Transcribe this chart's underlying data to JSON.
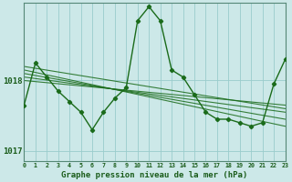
{
  "title": "Graphe pression niveau de la mer (hPa)",
  "bg_color": "#cce8e8",
  "plot_bg_color": "#cce8e8",
  "line_color": "#1a6b1a",
  "grid_color": "#99cccc",
  "text_color": "#1a5c1a",
  "xlim": [
    0,
    23
  ],
  "ylim": [
    1016.85,
    1019.1
  ],
  "yticks": [
    1017,
    1018
  ],
  "ytick_labels": [
    "1017",
    "1018"
  ],
  "xticks": [
    0,
    1,
    2,
    3,
    4,
    5,
    6,
    7,
    8,
    9,
    10,
    11,
    12,
    13,
    14,
    15,
    16,
    17,
    18,
    19,
    20,
    21,
    22,
    23
  ],
  "main_series_x": [
    0,
    1,
    2,
    3,
    4,
    5,
    6,
    7,
    8,
    9,
    10,
    11,
    12,
    13,
    14,
    15,
    16,
    17,
    18,
    19,
    20,
    21,
    22,
    23
  ],
  "main_series_y": [
    1017.65,
    1018.25,
    1018.05,
    1017.85,
    1017.7,
    1017.55,
    1017.3,
    1017.55,
    1017.75,
    1017.9,
    1018.85,
    1019.05,
    1018.85,
    1018.15,
    1018.05,
    1017.8,
    1017.55,
    1017.45,
    1017.45,
    1017.4,
    1017.35,
    1017.4,
    1017.95,
    1018.3
  ],
  "trend_lines": [
    {
      "x": [
        0,
        23
      ],
      "y": [
        1018.05,
        1017.55
      ]
    },
    {
      "x": [
        0,
        23
      ],
      "y": [
        1018.1,
        1017.45
      ]
    },
    {
      "x": [
        0,
        23
      ],
      "y": [
        1018.15,
        1017.35
      ]
    },
    {
      "x": [
        0,
        23
      ],
      "y": [
        1018.2,
        1017.6
      ]
    },
    {
      "x": [
        0,
        23
      ],
      "y": [
        1018.0,
        1017.65
      ]
    }
  ]
}
